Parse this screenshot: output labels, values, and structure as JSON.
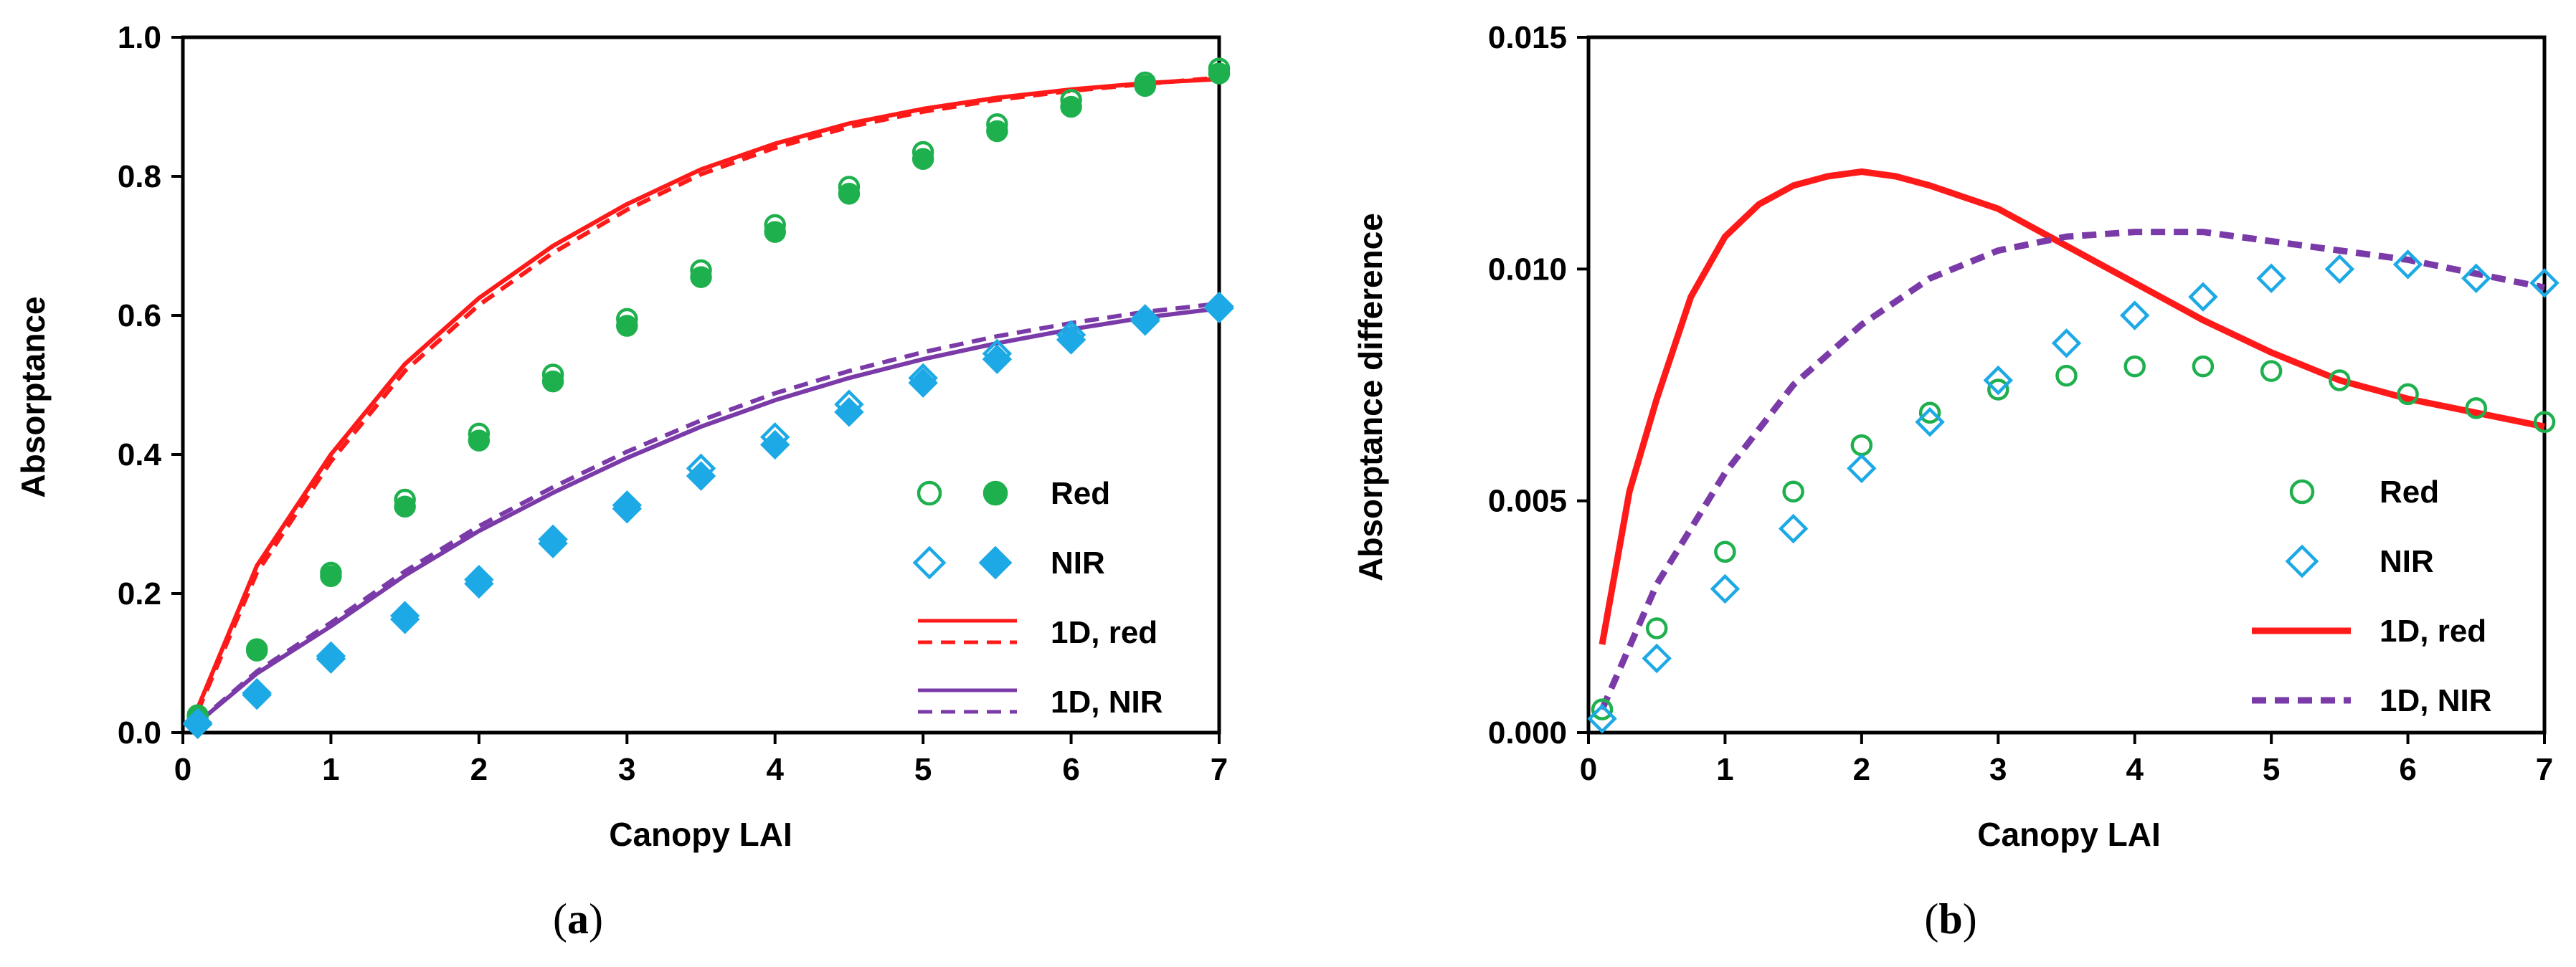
{
  "colors": {
    "green": "#1fb04e",
    "blue": "#1ca9e6",
    "red": "#ff1a1a",
    "purple": "#7a3aa8",
    "axis": "#000000"
  },
  "chart_data": [
    {
      "id": "a",
      "type": "scatter",
      "caption_open": "(",
      "caption_letter": "a",
      "caption_close": ")",
      "xlabel": "Canopy LAI",
      "ylabel": "Absorptance",
      "xlim": [
        0,
        7
      ],
      "ylim": [
        0,
        1.0
      ],
      "xticks": [
        0,
        1,
        2,
        3,
        4,
        5,
        6,
        7
      ],
      "xtick_labels": [
        "0",
        "1",
        "2",
        "3",
        "4",
        "5",
        "6",
        "7"
      ],
      "yticks": [
        0,
        0.2,
        0.4,
        0.6,
        0.8,
        1.0
      ],
      "ytick_labels": [
        "0.0",
        "0.2",
        "0.4",
        "0.6",
        "0.8",
        "1.0"
      ],
      "series": [
        {
          "name": "Red (open)",
          "kind": "marker",
          "marker": "circle-open",
          "color": "#1fb04e",
          "x": [
            0.1,
            0.5,
            1,
            1.5,
            2,
            2.5,
            3,
            3.5,
            4,
            4.5,
            5,
            5.5,
            6,
            6.5,
            7
          ],
          "y": [
            0.025,
            0.12,
            0.23,
            0.335,
            0.43,
            0.515,
            0.595,
            0.665,
            0.73,
            0.785,
            0.835,
            0.875,
            0.91,
            0.935,
            0.955
          ]
        },
        {
          "name": "Red (filled)",
          "kind": "marker",
          "marker": "circle-filled",
          "color": "#1fb04e",
          "x": [
            0.1,
            0.5,
            1,
            1.5,
            2,
            2.5,
            3,
            3.5,
            4,
            4.5,
            5,
            5.5,
            6,
            6.5,
            7
          ],
          "y": [
            0.022,
            0.118,
            0.225,
            0.325,
            0.42,
            0.505,
            0.585,
            0.655,
            0.72,
            0.775,
            0.825,
            0.865,
            0.9,
            0.93,
            0.948
          ]
        },
        {
          "name": "NIR (open)",
          "kind": "marker",
          "marker": "diamond-open",
          "color": "#1ca9e6",
          "x": [
            0.1,
            0.5,
            1,
            1.5,
            2,
            2.5,
            3,
            3.5,
            4,
            4.5,
            5,
            5.5,
            6,
            6.5,
            7
          ],
          "y": [
            0.014,
            0.057,
            0.11,
            0.168,
            0.22,
            0.278,
            0.327,
            0.38,
            0.425,
            0.472,
            0.51,
            0.545,
            0.572,
            0.595,
            0.613
          ]
        },
        {
          "name": "NIR (filled)",
          "kind": "marker",
          "marker": "diamond-filled",
          "color": "#1ca9e6",
          "x": [
            0.1,
            0.5,
            1,
            1.5,
            2,
            2.5,
            3,
            3.5,
            4,
            4.5,
            5,
            5.5,
            6,
            6.5,
            7
          ],
          "y": [
            0.012,
            0.054,
            0.106,
            0.163,
            0.214,
            0.272,
            0.322,
            0.369,
            0.414,
            0.461,
            0.503,
            0.537,
            0.565,
            0.592,
            0.61
          ]
        },
        {
          "name": "1D, red (solid)",
          "kind": "line",
          "dash": "solid",
          "color": "#ff1a1a",
          "width": 6,
          "x": [
            0.1,
            0.5,
            1,
            1.5,
            2,
            2.5,
            3,
            3.5,
            4,
            4.5,
            5,
            5.5,
            6,
            6.5,
            7
          ],
          "y": [
            0.035,
            0.24,
            0.4,
            0.53,
            0.625,
            0.7,
            0.76,
            0.81,
            0.847,
            0.876,
            0.897,
            0.913,
            0.925,
            0.934,
            0.94
          ]
        },
        {
          "name": "1D, red (dashed)",
          "kind": "line",
          "dash": "dashed",
          "color": "#ff1a1a",
          "width": 6,
          "x": [
            0.1,
            0.5,
            1,
            1.5,
            2,
            2.5,
            3,
            3.5,
            4,
            4.5,
            5,
            5.5,
            6,
            6.5,
            7
          ],
          "y": [
            0.03,
            0.23,
            0.39,
            0.52,
            0.615,
            0.69,
            0.752,
            0.803,
            0.841,
            0.871,
            0.893,
            0.91,
            0.923,
            0.933,
            0.942
          ]
        },
        {
          "name": "1D, NIR (solid)",
          "kind": "line",
          "dash": "solid",
          "color": "#7a3aa8",
          "width": 6,
          "x": [
            0.1,
            0.5,
            1,
            1.5,
            2,
            2.5,
            3,
            3.5,
            4,
            4.5,
            5,
            5.5,
            6,
            6.5,
            7
          ],
          "y": [
            0.014,
            0.085,
            0.153,
            0.226,
            0.29,
            0.345,
            0.395,
            0.44,
            0.478,
            0.51,
            0.537,
            0.56,
            0.58,
            0.597,
            0.61
          ]
        },
        {
          "name": "1D, NIR (dashed)",
          "kind": "line",
          "dash": "dashed",
          "color": "#7a3aa8",
          "width": 6,
          "x": [
            0.1,
            0.5,
            1,
            1.5,
            2,
            2.5,
            3,
            3.5,
            4,
            4.5,
            5,
            5.5,
            6,
            6.5,
            7
          ],
          "y": [
            0.015,
            0.088,
            0.158,
            0.232,
            0.297,
            0.353,
            0.404,
            0.449,
            0.488,
            0.52,
            0.547,
            0.57,
            0.589,
            0.605,
            0.617
          ]
        }
      ],
      "legend": {
        "placement": "bottom-right",
        "entries": [
          {
            "label": "Red",
            "symbols": [
              "circle-open",
              "circle-filled"
            ],
            "color": "#1fb04e"
          },
          {
            "label": "NIR",
            "symbols": [
              "diamond-open",
              "diamond-filled"
            ],
            "color": "#1ca9e6"
          },
          {
            "label": "1D, red",
            "symbols": [
              "line-solid",
              "line-dashed"
            ],
            "color": "#ff1a1a"
          },
          {
            "label": "1D, NIR",
            "symbols": [
              "line-solid",
              "line-dashed"
            ],
            "color": "#7a3aa8"
          }
        ]
      }
    },
    {
      "id": "b",
      "type": "scatter",
      "caption_open": "(",
      "caption_letter": "b",
      "caption_close": ")",
      "xlabel": "Canopy LAI",
      "ylabel": "Absorptance difference",
      "xlim": [
        0,
        7
      ],
      "ylim": [
        0,
        0.015
      ],
      "xticks": [
        0,
        1,
        2,
        3,
        4,
        5,
        6,
        7
      ],
      "xtick_labels": [
        "0",
        "1",
        "2",
        "3",
        "4",
        "5",
        "6",
        "7"
      ],
      "yticks": [
        0,
        0.005,
        0.01,
        0.015
      ],
      "ytick_labels": [
        "0.000",
        "0.005",
        "0.010",
        "0.015"
      ],
      "series": [
        {
          "name": "Red",
          "kind": "marker",
          "marker": "circle-open",
          "color": "#1fb04e",
          "x": [
            0.1,
            0.5,
            1,
            1.5,
            2,
            2.5,
            3,
            3.5,
            4,
            4.5,
            5,
            5.5,
            6,
            6.5,
            7
          ],
          "y": [
            0.0005,
            0.00225,
            0.0039,
            0.0052,
            0.0062,
            0.0069,
            0.0074,
            0.0077,
            0.0079,
            0.0079,
            0.0078,
            0.0076,
            0.0073,
            0.007,
            0.0067
          ]
        },
        {
          "name": "NIR",
          "kind": "marker",
          "marker": "diamond-open",
          "color": "#1ca9e6",
          "x": [
            0.1,
            0.5,
            1,
            1.5,
            2,
            2.5,
            3,
            3.5,
            4,
            4.5,
            5,
            5.5,
            6,
            6.5,
            7
          ],
          "y": [
            0.0003,
            0.0016,
            0.0031,
            0.0044,
            0.0057,
            0.0067,
            0.0076,
            0.0084,
            0.009,
            0.0094,
            0.0098,
            0.01,
            0.0101,
            0.0098,
            0.0097
          ]
        },
        {
          "name": "1D, red",
          "kind": "line",
          "dash": "solid",
          "color": "#ff1a1a",
          "width": 9,
          "x": [
            0.1,
            0.3,
            0.5,
            0.75,
            1,
            1.25,
            1.5,
            1.75,
            2,
            2.25,
            2.5,
            3,
            3.5,
            4,
            4.5,
            5,
            5.5,
            6,
            6.5,
            7
          ],
          "y": [
            0.0019,
            0.0052,
            0.0072,
            0.0094,
            0.0107,
            0.0114,
            0.0118,
            0.012,
            0.0121,
            0.012,
            0.0118,
            0.0113,
            0.0105,
            0.0097,
            0.0089,
            0.0082,
            0.0076,
            0.0072,
            0.0069,
            0.0066
          ]
        },
        {
          "name": "1D, NIR",
          "kind": "line",
          "dash": "dashed",
          "color": "#7a3aa8",
          "width": 9,
          "x": [
            0.1,
            0.5,
            1,
            1.5,
            2,
            2.5,
            3,
            3.5,
            4,
            4.5,
            5,
            5.5,
            6,
            6.5,
            7
          ],
          "y": [
            0.0005,
            0.0032,
            0.0056,
            0.0075,
            0.0088,
            0.0098,
            0.0104,
            0.0107,
            0.0108,
            0.0108,
            0.0106,
            0.0104,
            0.0102,
            0.0099,
            0.0096
          ]
        }
      ],
      "legend": {
        "placement": "bottom-right",
        "entries": [
          {
            "label": "Red",
            "symbols": [
              "circle-open"
            ],
            "color": "#1fb04e"
          },
          {
            "label": "NIR",
            "symbols": [
              "diamond-open"
            ],
            "color": "#1ca9e6"
          },
          {
            "label": "1D, red",
            "symbols": [
              "line-solid"
            ],
            "color": "#ff1a1a"
          },
          {
            "label": "1D, NIR",
            "symbols": [
              "line-dashed"
            ],
            "color": "#7a3aa8"
          }
        ]
      }
    }
  ]
}
